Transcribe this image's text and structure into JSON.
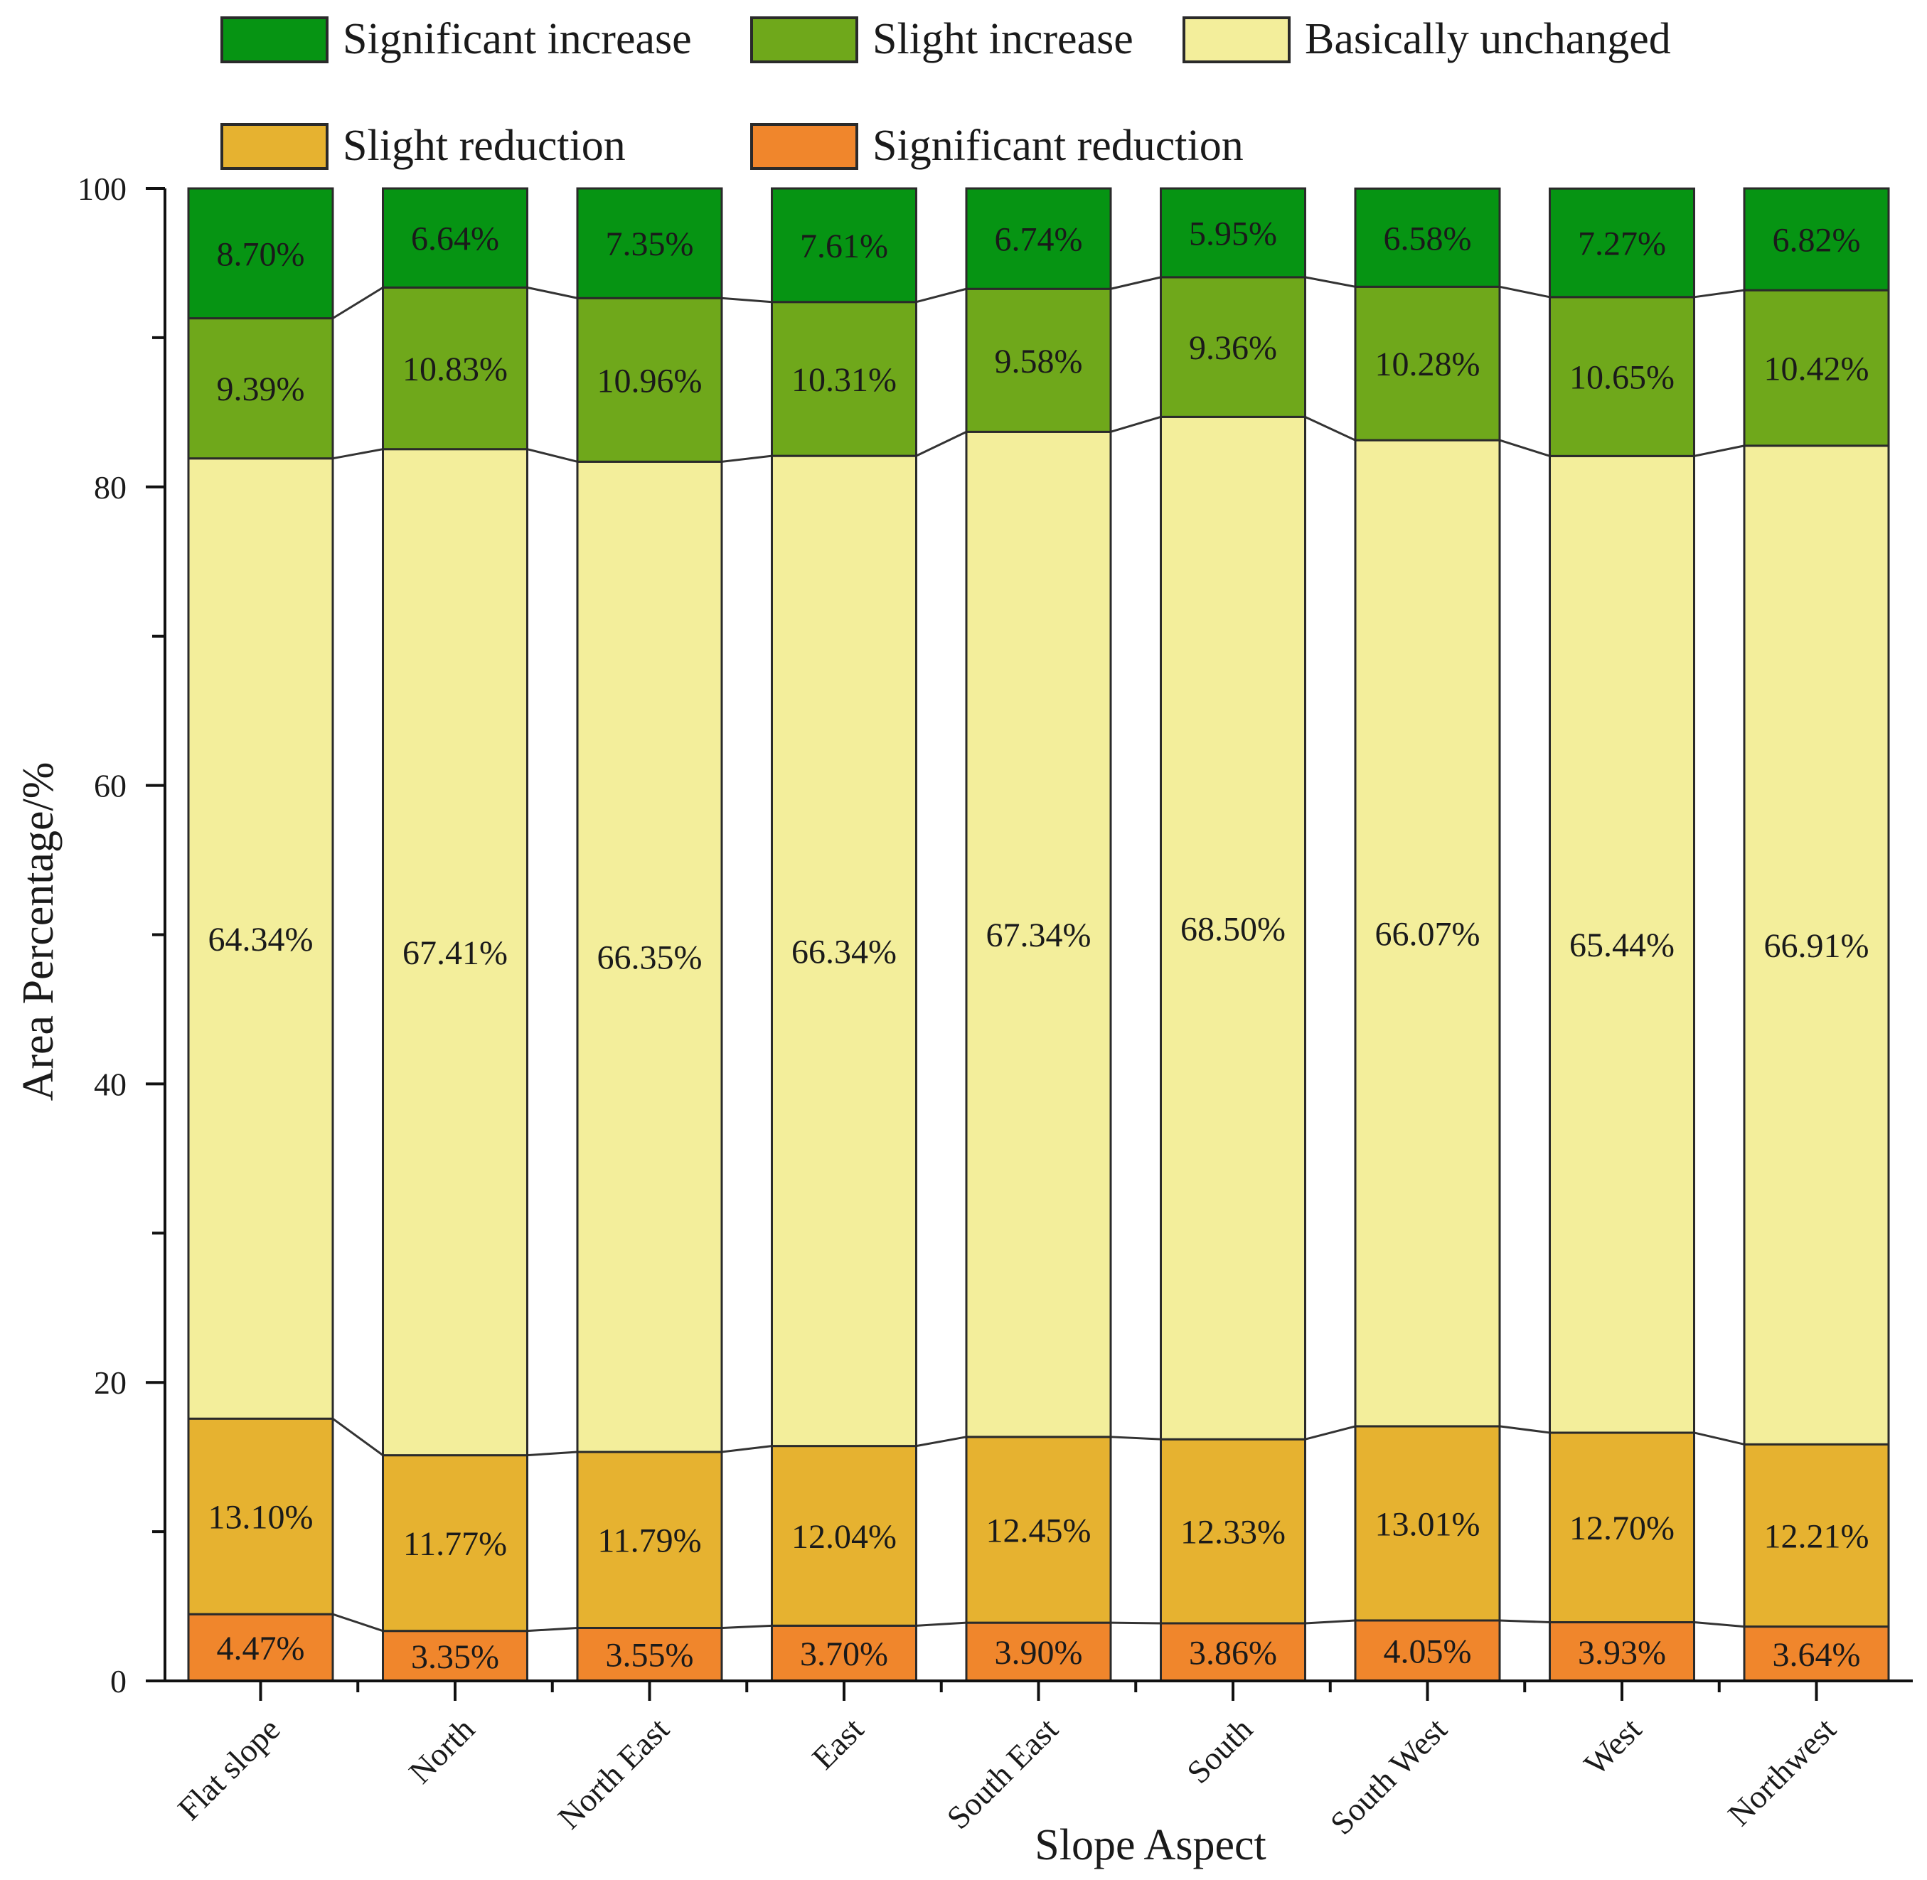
{
  "chart_data": {
    "type": "bar",
    "stacked": true,
    "title": "",
    "xlabel": "Slope Aspect",
    "ylabel": "Area Percentage/%",
    "ylim": [
      0,
      100
    ],
    "yticks": [
      0,
      20,
      40,
      60,
      80,
      100
    ],
    "categories": [
      "Flat slope",
      "North",
      "North East",
      "East",
      "South East",
      "South",
      "South West",
      "West",
      "Northwest"
    ],
    "legend_position": "top",
    "series": [
      {
        "name": "Significant reduction",
        "color": "#f0862c",
        "values": [
          4.47,
          3.35,
          3.55,
          3.7,
          3.9,
          3.86,
          4.05,
          3.93,
          3.64
        ],
        "labels": [
          "4.47%",
          "3.35%",
          "3.55%",
          "3.70%",
          "3.90%",
          "3.86%",
          "4.05%",
          "3.93%",
          "3.64%"
        ]
      },
      {
        "name": "Slight reduction",
        "color": "#e6b230",
        "values": [
          13.1,
          11.77,
          11.79,
          12.04,
          12.45,
          12.33,
          13.01,
          12.7,
          12.21
        ],
        "labels": [
          "13.10%",
          "11.77%",
          "11.79%",
          "12.04%",
          "12.45%",
          "12.33%",
          "13.01%",
          "12.70%",
          "12.21%"
        ]
      },
      {
        "name": "Basically unchanged",
        "color": "#f3ee9b",
        "values": [
          64.34,
          67.41,
          66.35,
          66.34,
          67.34,
          68.5,
          66.07,
          65.44,
          66.91
        ],
        "labels": [
          "64.34%",
          "67.41%",
          "66.35%",
          "66.34%",
          "67.34%",
          "68.50%",
          "66.07%",
          "65.44%",
          "66.91%"
        ]
      },
      {
        "name": "Slight increase",
        "color": "#6fa81b",
        "values": [
          9.39,
          10.83,
          10.96,
          10.31,
          9.58,
          9.36,
          10.28,
          10.65,
          10.42
        ],
        "labels": [
          "9.39%",
          "10.83%",
          "10.96%",
          "10.31%",
          "9.58%",
          "9.36%",
          "10.28%",
          "10.65%",
          "10.42%"
        ]
      },
      {
        "name": "Significant increase",
        "color": "#069413",
        "values": [
          8.7,
          6.64,
          7.35,
          7.61,
          6.74,
          5.95,
          6.58,
          7.27,
          6.82
        ],
        "labels": [
          "8.70%",
          "6.64%",
          "7.35%",
          "7.61%",
          "6.74%",
          "5.95%",
          "6.58%",
          "7.27%",
          "6.82%"
        ]
      }
    ],
    "legend_order": [
      "Significant increase",
      "Slight increase",
      "Basically unchanged",
      "Slight reduction",
      "Significant reduction"
    ]
  }
}
